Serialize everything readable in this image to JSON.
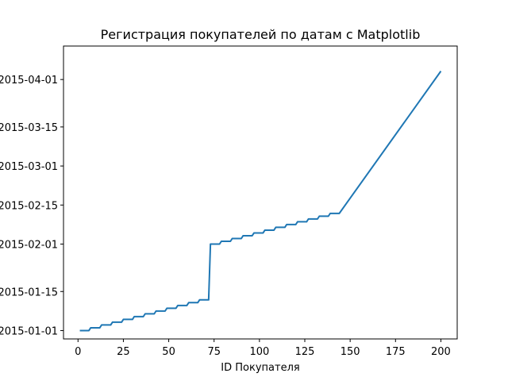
{
  "chart_data": {
    "type": "line",
    "title": "Регистрация покупателей по датам с Matplotlib",
    "xlabel": "ID Покупателя",
    "ylabel": "",
    "xlim": [
      -8,
      209
    ],
    "ylim": [
      "2014-12-29",
      "2015-04-13"
    ],
    "xticks": [
      0,
      25,
      50,
      75,
      100,
      125,
      150,
      175,
      200
    ],
    "yticks": [
      "2015-01-01",
      "2015-01-15",
      "2015-02-01",
      "2015-02-15",
      "2015-03-01",
      "2015-03-15",
      "2015-04-01"
    ],
    "grid": false,
    "legend": "none",
    "series": [
      {
        "color": "#1f77b4",
        "x": [
          1,
          6,
          7,
          12,
          13,
          18,
          19,
          24,
          25,
          30,
          31,
          36,
          37,
          42,
          43,
          48,
          49,
          54,
          55,
          60,
          61,
          66,
          67,
          72,
          73,
          78,
          79,
          84,
          85,
          90,
          91,
          96,
          97,
          102,
          103,
          108,
          109,
          114,
          115,
          120,
          121,
          126,
          127,
          132,
          133,
          138,
          139,
          144,
          200
        ],
        "y": [
          "2015-01-01",
          "2015-01-01",
          "2015-01-02",
          "2015-01-02",
          "2015-01-03",
          "2015-01-03",
          "2015-01-04",
          "2015-01-04",
          "2015-01-05",
          "2015-01-05",
          "2015-01-06",
          "2015-01-06",
          "2015-01-07",
          "2015-01-07",
          "2015-01-08",
          "2015-01-08",
          "2015-01-09",
          "2015-01-09",
          "2015-01-10",
          "2015-01-10",
          "2015-01-11",
          "2015-01-11",
          "2015-01-12",
          "2015-01-12",
          "2015-02-01",
          "2015-02-01",
          "2015-02-02",
          "2015-02-02",
          "2015-02-03",
          "2015-02-03",
          "2015-02-04",
          "2015-02-04",
          "2015-02-05",
          "2015-02-05",
          "2015-02-06",
          "2015-02-06",
          "2015-02-07",
          "2015-02-07",
          "2015-02-08",
          "2015-02-08",
          "2015-02-09",
          "2015-02-09",
          "2015-02-10",
          "2015-02-10",
          "2015-02-11",
          "2015-02-11",
          "2015-02-12",
          "2015-02-12",
          "2015-04-04"
        ]
      }
    ]
  }
}
